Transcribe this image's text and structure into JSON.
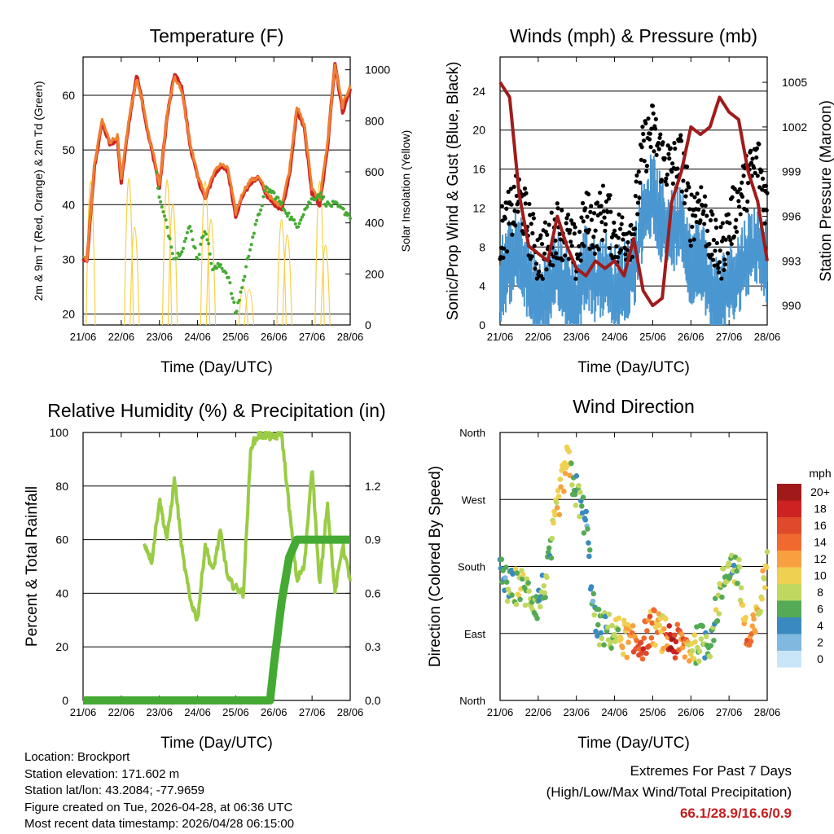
{
  "x_ticks": [
    "21/06",
    "22/06",
    "23/06",
    "24/06",
    "25/06",
    "26/06",
    "27/06",
    "28/06"
  ],
  "chart_data": [
    {
      "type": "line",
      "title": "Temperature (F)",
      "xlabel": "Time (Day/UTC)",
      "ylabel": "2m & 9m T (Red, Orange) & 2m Td (Green)",
      "y2label": "Solar Insolation (Yellow)",
      "ylim": [
        18,
        67
      ],
      "y2lim": [
        0,
        1050
      ],
      "yticks": [
        20,
        30,
        40,
        50,
        60
      ],
      "y2ticks": [
        0,
        200,
        400,
        600,
        800,
        1000
      ],
      "x_days": [
        0,
        0.1,
        0.3,
        0.5,
        0.7,
        0.9,
        1.0,
        1.2,
        1.4,
        1.5,
        1.7,
        1.9,
        2.0,
        2.2,
        2.4,
        2.6,
        2.8,
        3.0,
        3.2,
        3.4,
        3.6,
        3.8,
        4.0,
        4.2,
        4.4,
        4.6,
        4.8,
        5.0,
        5.2,
        5.4,
        5.6,
        5.8,
        6.0,
        6.2,
        6.4,
        6.6,
        6.8,
        7.0
      ],
      "series": [
        {
          "name": "2m T",
          "color": "#cc2222",
          "values": [
            30,
            29.5,
            47,
            55,
            51,
            52,
            44,
            55,
            63.5,
            61,
            53,
            47,
            43,
            56,
            64,
            61,
            51,
            45,
            41,
            45,
            47,
            46,
            38,
            42,
            44,
            45,
            42,
            40,
            39,
            45,
            57,
            54,
            42,
            40,
            50,
            66,
            57,
            61
          ]
        },
        {
          "name": "9m T",
          "color": "#f08030",
          "values": [
            30.5,
            30,
            47.5,
            55.5,
            51.5,
            52.5,
            44.5,
            55.5,
            63,
            60.5,
            53.5,
            47.5,
            43.5,
            56.5,
            63.5,
            60.5,
            51.5,
            45.5,
            41.5,
            45.5,
            47.5,
            46.5,
            38.5,
            42.5,
            44.5,
            45,
            42.5,
            40.5,
            40,
            46,
            58,
            54.5,
            43,
            41,
            51,
            65.5,
            58,
            62
          ]
        },
        {
          "name": "2m Td",
          "color": "#44aa33",
          "values": [
            null,
            null,
            null,
            null,
            null,
            null,
            null,
            null,
            null,
            null,
            null,
            47,
            41,
            36,
            30,
            32,
            36,
            30,
            36,
            28,
            29,
            27,
            20,
            26,
            33,
            38,
            43,
            42,
            40,
            38,
            36,
            39,
            41,
            42,
            40,
            40,
            39,
            38
          ]
        }
      ],
      "insolation": [
        {
          "day": 0.2,
          "peak": 1000
        },
        {
          "day": 1.2,
          "peak": 1020
        },
        {
          "day": 1.35,
          "peak": 640
        },
        {
          "day": 2.2,
          "peak": 1010
        },
        {
          "day": 2.35,
          "peak": 820
        },
        {
          "day": 3.2,
          "peak": 1000
        },
        {
          "day": 3.35,
          "peak": 700
        },
        {
          "day": 4.2,
          "peak": 180
        },
        {
          "day": 4.35,
          "peak": 150
        },
        {
          "day": 5.2,
          "peak": 700
        },
        {
          "day": 5.35,
          "peak": 580
        },
        {
          "day": 6.2,
          "peak": 1000
        },
        {
          "day": 6.35,
          "peak": 500
        }
      ]
    },
    {
      "type": "scatter",
      "title": "Winds (mph) & Pressure (mb)",
      "xlabel": "Time (Day/UTC)",
      "ylabel": "Sonic/Prop Wind & Gust (Blue, Black)",
      "y2label": "Station Pressure (Maroon)",
      "ylim": [
        0,
        27.5
      ],
      "y2lim": [
        988.7,
        1006.7
      ],
      "yticks": [
        0,
        4,
        8,
        12,
        16,
        20,
        24
      ],
      "y2ticks": [
        990,
        993,
        996,
        999,
        1002,
        1005
      ],
      "x_days": [
        0,
        0.25,
        0.5,
        0.75,
        1.0,
        1.25,
        1.5,
        1.75,
        2.0,
        2.25,
        2.5,
        2.75,
        3.0,
        3.25,
        3.5,
        3.75,
        4.0,
        4.25,
        4.5,
        4.75,
        5.0,
        5.25,
        5.5,
        5.75,
        6.0,
        6.25,
        6.5,
        6.75,
        7.0
      ],
      "wind": [
        5,
        7,
        8,
        5,
        3,
        4,
        6,
        4,
        3,
        7,
        5,
        6,
        4,
        5,
        6,
        12,
        14,
        11,
        10,
        12,
        6,
        8,
        4,
        3,
        5,
        6,
        8,
        9,
        7
      ],
      "gust": [
        9,
        11,
        13,
        10,
        7,
        8,
        10,
        9,
        7,
        11,
        10,
        12,
        9,
        9,
        10,
        18,
        20,
        17,
        16,
        17,
        11,
        13,
        9,
        7,
        10,
        13,
        15,
        17,
        12
      ],
      "pressure": [
        1005,
        1004,
        997.5,
        994,
        993.5,
        993,
        996,
        994,
        992.5,
        992,
        993,
        992.5,
        993,
        992,
        994.5,
        991,
        990,
        990.5,
        997,
        999,
        1002,
        1001.5,
        1002,
        1004,
        1003,
        1002.5,
        999,
        997,
        993
      ]
    },
    {
      "type": "line",
      "title": "Relative Humidity (%) & Precipitation (in)",
      "xlabel": "Time (Day/UTC)",
      "ylabel": "Percent & Total Rainfall",
      "ylim": [
        0,
        100
      ],
      "y2lim": [
        0,
        1.5
      ],
      "yticks": [
        0,
        20,
        40,
        60,
        80,
        100
      ],
      "y2ticks": [
        "0.0",
        "0.3",
        "0.6",
        "0.9",
        "1.2"
      ],
      "x_days": [
        1.6,
        1.8,
        2.0,
        2.2,
        2.4,
        2.6,
        2.8,
        3.0,
        3.2,
        3.4,
        3.6,
        3.8,
        4.0,
        4.2,
        4.4,
        4.6,
        4.8,
        5.0,
        5.2,
        5.4,
        5.6,
        5.8,
        6.0,
        6.2,
        6.4,
        6.6,
        6.8,
        7.0
      ],
      "series": [
        {
          "name": "Relative Humidity",
          "color": "#99cc44",
          "values": [
            59,
            52,
            75,
            60,
            83,
            55,
            38,
            30,
            58,
            48,
            63,
            45,
            42,
            40,
            95,
            99,
            99,
            98,
            100,
            72,
            45,
            50,
            88,
            42,
            74,
            40,
            58,
            45
          ]
        },
        {
          "name": "Total Rainfall",
          "color": "#44aa33",
          "points": [
            [
              0,
              0
            ],
            [
              4.9,
              0
            ],
            [
              5.0,
              0.2
            ],
            [
              5.2,
              0.55
            ],
            [
              5.4,
              0.8
            ],
            [
              5.6,
              0.9
            ],
            [
              7.0,
              0.9
            ]
          ]
        }
      ]
    },
    {
      "type": "scatter",
      "title": "Wind Direction",
      "xlabel": "Time (Day/UTC)",
      "ylabel": "Direction (Colored By Speed)",
      "ylim": [
        0,
        360
      ],
      "yticks": [
        "North",
        "East",
        "South",
        "West",
        "North"
      ],
      "x_days": [
        0,
        0.25,
        0.5,
        0.75,
        1.0,
        1.25,
        1.5,
        1.75,
        2.0,
        2.25,
        2.5,
        2.75,
        3.0,
        3.25,
        3.5,
        3.75,
        4.0,
        4.25,
        4.5,
        4.75,
        5.0,
        5.25,
        5.5,
        5.75,
        6.0,
        6.25,
        6.5,
        6.75,
        7.0
      ],
      "direction": [
        170,
        150,
        155,
        145,
        130,
        170,
        260,
        320,
        280,
        240,
        100,
        95,
        90,
        85,
        75,
        80,
        100,
        90,
        80,
        75,
        70,
        78,
        80,
        140,
        185,
        170,
        70,
        110,
        190
      ],
      "speed": [
        4,
        6,
        8,
        7,
        5,
        6,
        10,
        12,
        6,
        4,
        5,
        6,
        8,
        10,
        14,
        16,
        12,
        10,
        18,
        14,
        9,
        8,
        6,
        7,
        6,
        8,
        14,
        10,
        9
      ],
      "colorbar": {
        "title": "mph",
        "labels": [
          "20+",
          "18",
          "16",
          "14",
          "12",
          "10",
          "8",
          "6",
          "4",
          "2",
          "0"
        ],
        "colors": [
          "#a01a1a",
          "#cc2222",
          "#e04a2a",
          "#f06a30",
          "#f8a040",
          "#f0d050",
          "#c0d860",
          "#55aa55",
          "#3a8ac0",
          "#80b8e0",
          "#c8e6f8"
        ]
      }
    }
  ],
  "info": {
    "location": "Location: Brockport",
    "elevation": "Station elevation: 171.602 m",
    "latlon": "Station lat/lon: 43.2084; -77.9659",
    "created": "Figure created on Tue, 2026-04-28, at 06:36 UTC",
    "recent": "Most recent data timestamp: 2026/04/28 06:15:00"
  },
  "extremes": {
    "line1": "Extremes For Past 7 Days",
    "line2": "(High/Low/Max Wind/Total Precipitation)",
    "values": "66.1/28.9/16.6/0.9"
  }
}
